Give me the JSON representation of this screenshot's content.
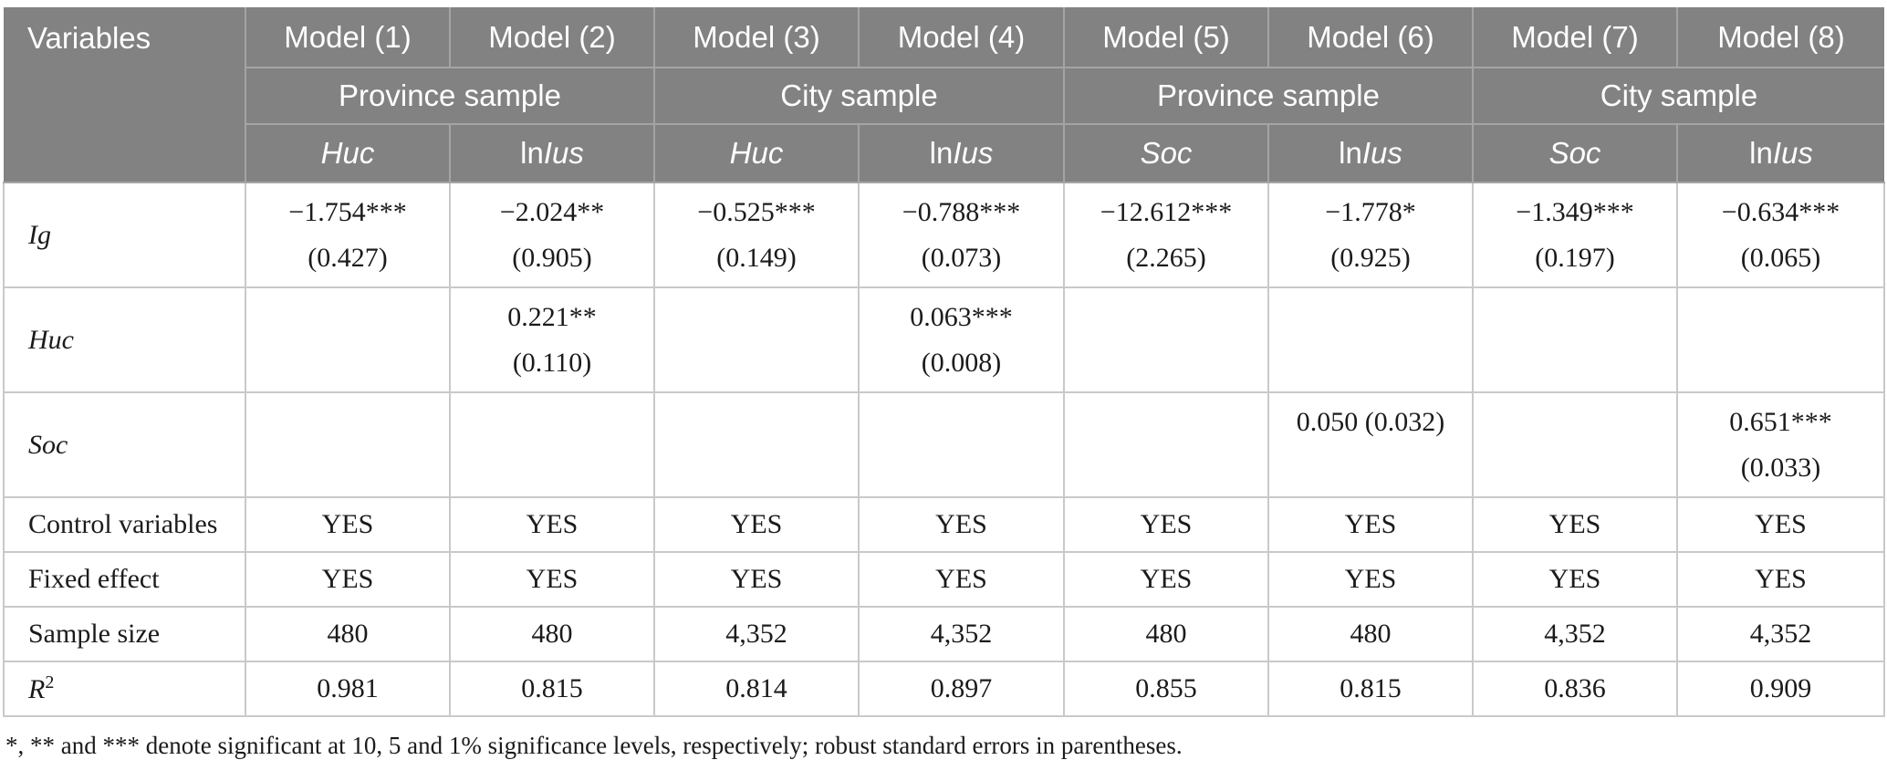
{
  "header": {
    "variables_label": "Variables",
    "models": [
      "Model (1)",
      "Model (2)",
      "Model (3)",
      "Model (4)",
      "Model (5)",
      "Model (6)",
      "Model (7)",
      "Model (8)"
    ],
    "samples": [
      {
        "label": "Province sample"
      },
      {
        "label": "City sample"
      },
      {
        "label": "Province sample"
      },
      {
        "label": "City sample"
      }
    ],
    "dep_vars": [
      {
        "prefix": "",
        "name": "Huc"
      },
      {
        "prefix": "ln",
        "name": "Ius"
      },
      {
        "prefix": "",
        "name": "Huc"
      },
      {
        "prefix": "ln",
        "name": "Ius"
      },
      {
        "prefix": "",
        "name": "Soc"
      },
      {
        "prefix": "ln",
        "name": "Ius"
      },
      {
        "prefix": "",
        "name": "Soc"
      },
      {
        "prefix": "ln",
        "name": "Ius"
      }
    ]
  },
  "body_rows": [
    {
      "id": "ig",
      "label": "Ig",
      "italic": true,
      "type": "coef",
      "cells": [
        {
          "l1": "−1.754***",
          "l2": "(0.427)"
        },
        {
          "l1": "−2.024**",
          "l2": "(0.905)"
        },
        {
          "l1": "−0.525***",
          "l2": "(0.149)"
        },
        {
          "l1": "−0.788***",
          "l2": "(0.073)"
        },
        {
          "l1": "−12.612***",
          "l2": "(2.265)"
        },
        {
          "l1": "−1.778*",
          "l2": "(0.925)"
        },
        {
          "l1": "−1.349***",
          "l2": "(0.197)"
        },
        {
          "l1": "−0.634***",
          "l2": "(0.065)"
        }
      ]
    },
    {
      "id": "huc",
      "label": "Huc",
      "italic": true,
      "type": "coef",
      "cells": [
        {
          "l1": "",
          "l2": ""
        },
        {
          "l1": "0.221**",
          "l2": "(0.110)"
        },
        {
          "l1": "",
          "l2": ""
        },
        {
          "l1": "0.063***",
          "l2": "(0.008)"
        },
        {
          "l1": "",
          "l2": ""
        },
        {
          "l1": "",
          "l2": ""
        },
        {
          "l1": "",
          "l2": ""
        },
        {
          "l1": "",
          "l2": ""
        }
      ]
    },
    {
      "id": "soc",
      "label": "Soc",
      "italic": true,
      "type": "coef",
      "cells": [
        {
          "l1": "",
          "l2": ""
        },
        {
          "l1": "",
          "l2": ""
        },
        {
          "l1": "",
          "l2": ""
        },
        {
          "l1": "",
          "l2": ""
        },
        {
          "l1": "",
          "l2": ""
        },
        {
          "l1": "0.050 (0.032)",
          "l2": ""
        },
        {
          "l1": "",
          "l2": ""
        },
        {
          "l1": "0.651***",
          "l2": "(0.033)"
        }
      ]
    },
    {
      "id": "control-variables",
      "label": "Control variables",
      "italic": false,
      "type": "simple",
      "cells": [
        "YES",
        "YES",
        "YES",
        "YES",
        "YES",
        "YES",
        "YES",
        "YES"
      ]
    },
    {
      "id": "fixed-effect",
      "label": "Fixed effect",
      "italic": false,
      "type": "simple",
      "cells": [
        "YES",
        "YES",
        "YES",
        "YES",
        "YES",
        "YES",
        "YES",
        "YES"
      ]
    },
    {
      "id": "sample-size",
      "label": "Sample size",
      "italic": false,
      "type": "simple",
      "cells": [
        "480",
        "480",
        "4,352",
        "4,352",
        "480",
        "480",
        "4,352",
        "4,352"
      ]
    },
    {
      "id": "r-squared",
      "label": "R",
      "sup": "2",
      "italic": true,
      "type": "simple",
      "cells": [
        "0.981",
        "0.815",
        "0.814",
        "0.897",
        "0.855",
        "0.815",
        "0.836",
        "0.909"
      ]
    }
  ],
  "footnote": "*, ** and *** denote significant at 10, 5 and 1% significance levels, respectively; robust standard errors in parentheses.",
  "colors": {
    "header_bg": "#828282",
    "header_text": "#ffffff",
    "header_border": "#a4a4a4",
    "body_border": "#c9c9c9",
    "text": "#1b1b1b"
  }
}
